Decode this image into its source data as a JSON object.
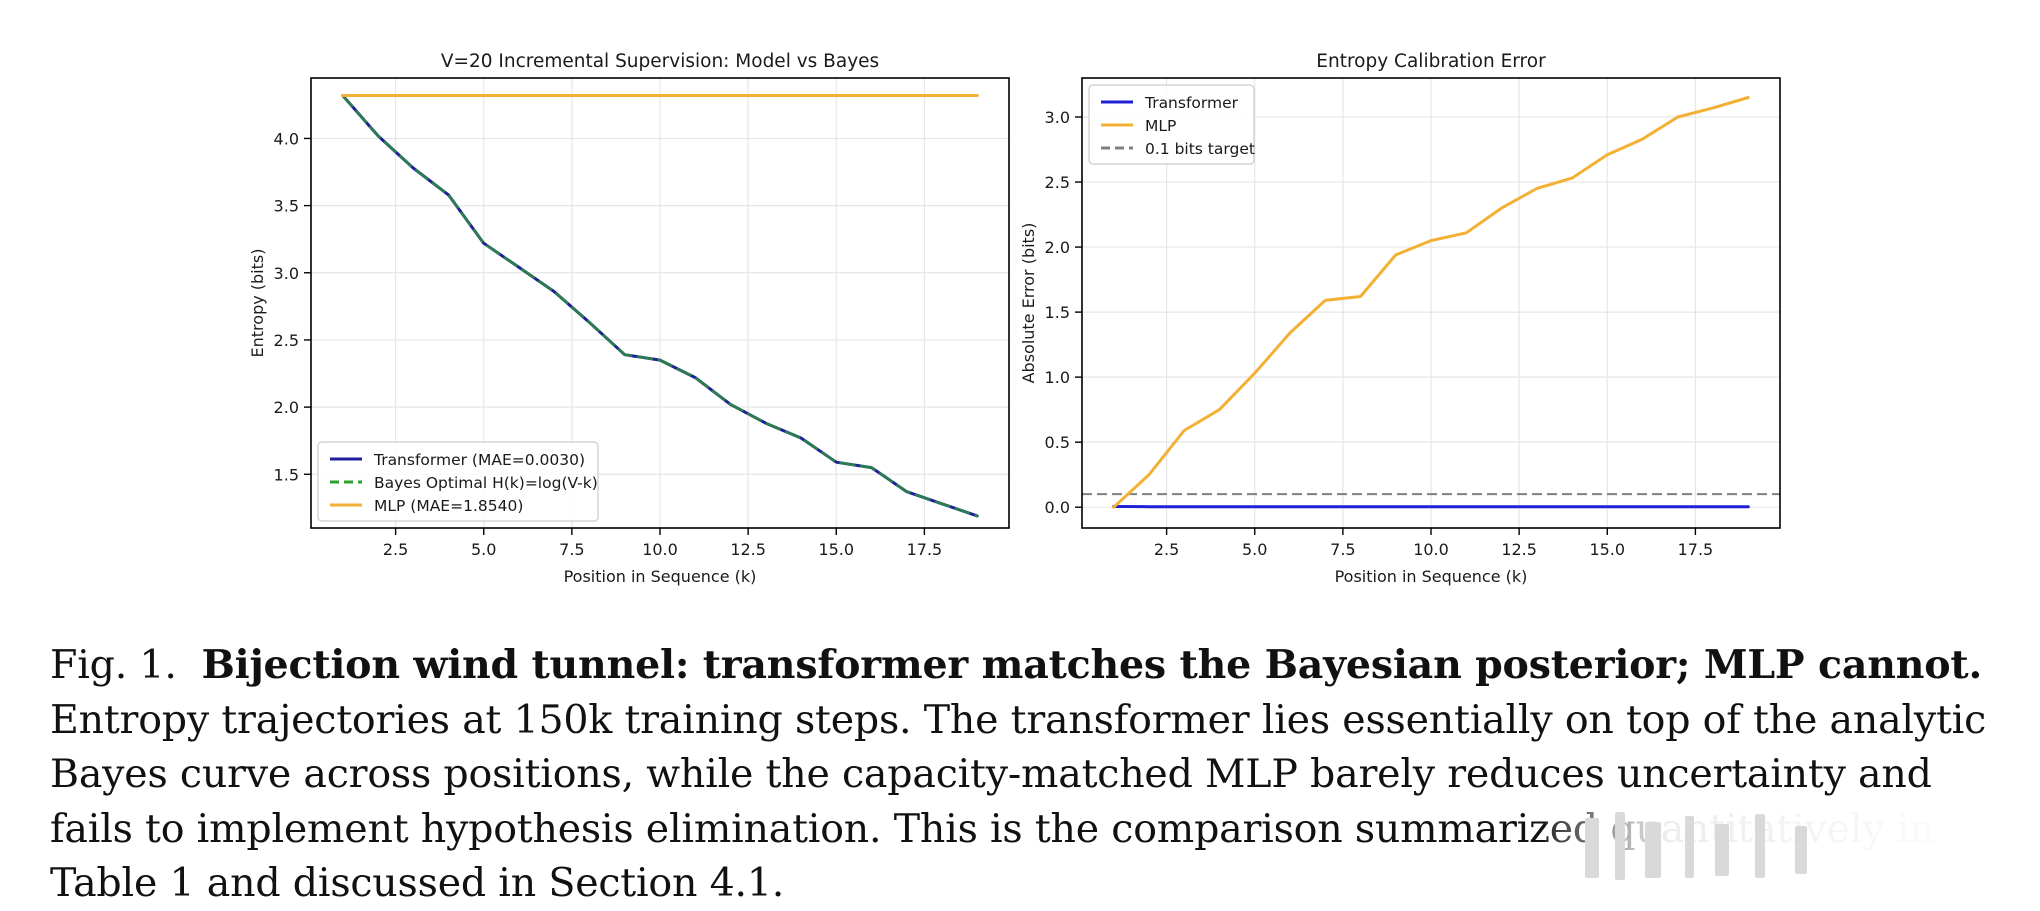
{
  "chart_data": [
    {
      "type": "line",
      "title": "V=20 Incremental Supervision: Model vs Bayes",
      "xlabel": "Position in Sequence (k)",
      "ylabel": "Entropy (bits)",
      "xlim": [
        0.1,
        19.9
      ],
      "ylim": [
        1.1,
        4.45
      ],
      "xticks": [
        2.5,
        5.0,
        7.5,
        10.0,
        12.5,
        15.0,
        17.5
      ],
      "xtick_labels": [
        "2.5",
        "5.0",
        "7.5",
        "10.0",
        "12.5",
        "15.0",
        "17.5"
      ],
      "yticks": [
        1.5,
        2.0,
        2.5,
        3.0,
        3.5,
        4.0
      ],
      "ytick_labels": [
        "1.5",
        "2.0",
        "2.5",
        "3.0",
        "3.5",
        "4.0"
      ],
      "grid": true,
      "legend_position": "lower-left",
      "series": [
        {
          "name": "Transformer (MAE=0.0030)",
          "color": "#1f1f9c",
          "style": "solid",
          "x": [
            1,
            2,
            3,
            4,
            5,
            6,
            7,
            8,
            9,
            10,
            11,
            12,
            13,
            14,
            15,
            16,
            17,
            18,
            19
          ],
          "y": [
            4.32,
            4.02,
            3.78,
            3.58,
            3.22,
            3.04,
            2.86,
            2.63,
            2.39,
            2.35,
            2.22,
            2.02,
            1.88,
            1.77,
            1.59,
            1.55,
            1.37,
            1.28,
            1.19
          ]
        },
        {
          "name": "Bayes Optimal H(k)=log(V-k)",
          "color": "#2ca02c",
          "style": "dashed",
          "x": [
            1,
            2,
            3,
            4,
            5,
            6,
            7,
            8,
            9,
            10,
            11,
            12,
            13,
            14,
            15,
            16,
            17,
            18,
            19
          ],
          "y": [
            4.32,
            4.02,
            3.78,
            3.58,
            3.22,
            3.04,
            2.86,
            2.63,
            2.39,
            2.35,
            2.22,
            2.02,
            1.88,
            1.77,
            1.59,
            1.55,
            1.37,
            1.28,
            1.19
          ]
        },
        {
          "name": "MLP (MAE=1.8540)",
          "color": "#f2b134",
          "style": "solid",
          "x": [
            1,
            2,
            3,
            4,
            5,
            6,
            7,
            8,
            9,
            10,
            11,
            12,
            13,
            14,
            15,
            16,
            17,
            18,
            19
          ],
          "y": [
            4.32,
            4.32,
            4.32,
            4.32,
            4.32,
            4.32,
            4.32,
            4.32,
            4.32,
            4.32,
            4.32,
            4.32,
            4.32,
            4.32,
            4.32,
            4.32,
            4.32,
            4.32,
            4.32
          ]
        }
      ]
    },
    {
      "type": "line",
      "title": "Entropy Calibration Error",
      "xlabel": "Position in Sequence (k)",
      "ylabel": "Absolute Error (bits)",
      "xlim": [
        0.1,
        19.9
      ],
      "ylim": [
        -0.16,
        3.3
      ],
      "xticks": [
        2.5,
        5.0,
        7.5,
        10.0,
        12.5,
        15.0,
        17.5
      ],
      "xtick_labels": [
        "2.5",
        "5.0",
        "7.5",
        "10.0",
        "12.5",
        "15.0",
        "17.5"
      ],
      "yticks": [
        0.0,
        0.5,
        1.0,
        1.5,
        2.0,
        2.5,
        3.0
      ],
      "ytick_labels": [
        "0.0",
        "0.5",
        "1.0",
        "1.5",
        "2.0",
        "2.5",
        "3.0"
      ],
      "grid": true,
      "legend_position": "upper-left",
      "hline": {
        "name": "0.1 bits target",
        "y": 0.1,
        "color": "#808080",
        "style": "dashed"
      },
      "series": [
        {
          "name": "Transformer",
          "color": "#1f1fd8",
          "style": "solid",
          "x": [
            1,
            2,
            3,
            4,
            5,
            6,
            7,
            8,
            9,
            10,
            11,
            12,
            13,
            14,
            15,
            16,
            17,
            18,
            19
          ],
          "y": [
            0.005,
            0.004,
            0.004,
            0.003,
            0.003,
            0.003,
            0.003,
            0.003,
            0.003,
            0.003,
            0.003,
            0.003,
            0.003,
            0.003,
            0.003,
            0.003,
            0.003,
            0.003,
            0.003
          ]
        },
        {
          "name": "MLP",
          "color": "#f2b134",
          "style": "solid",
          "x": [
            1,
            2,
            3,
            4,
            5,
            6,
            7,
            8,
            9,
            10,
            11,
            12,
            13,
            14,
            15,
            16,
            17,
            18,
            19
          ],
          "y": [
            0.0,
            0.25,
            0.59,
            0.75,
            1.03,
            1.34,
            1.59,
            1.62,
            1.94,
            2.05,
            2.11,
            2.3,
            2.45,
            2.53,
            2.71,
            2.83,
            3.0,
            3.07,
            3.15
          ]
        }
      ]
    }
  ],
  "caption": {
    "label": "Fig. 1.",
    "bold": "Bijection wind tunnel: transformer matches the Bayesian posterior; MLP cannot.",
    "text": "Entropy trajectories at 150k training steps. The transformer lies essentially on top of the analytic Bayes curve across positions, while the capacity-matched MLP barely reduces uncertainty and fails to implement hypothesis elimination. This is the comparison summarized quantitatively in Table 1 and discussed in Section 4.1."
  },
  "colors": {
    "grid": "#e6e6e6",
    "axis": "#000000",
    "text": "#1a1a1a"
  }
}
